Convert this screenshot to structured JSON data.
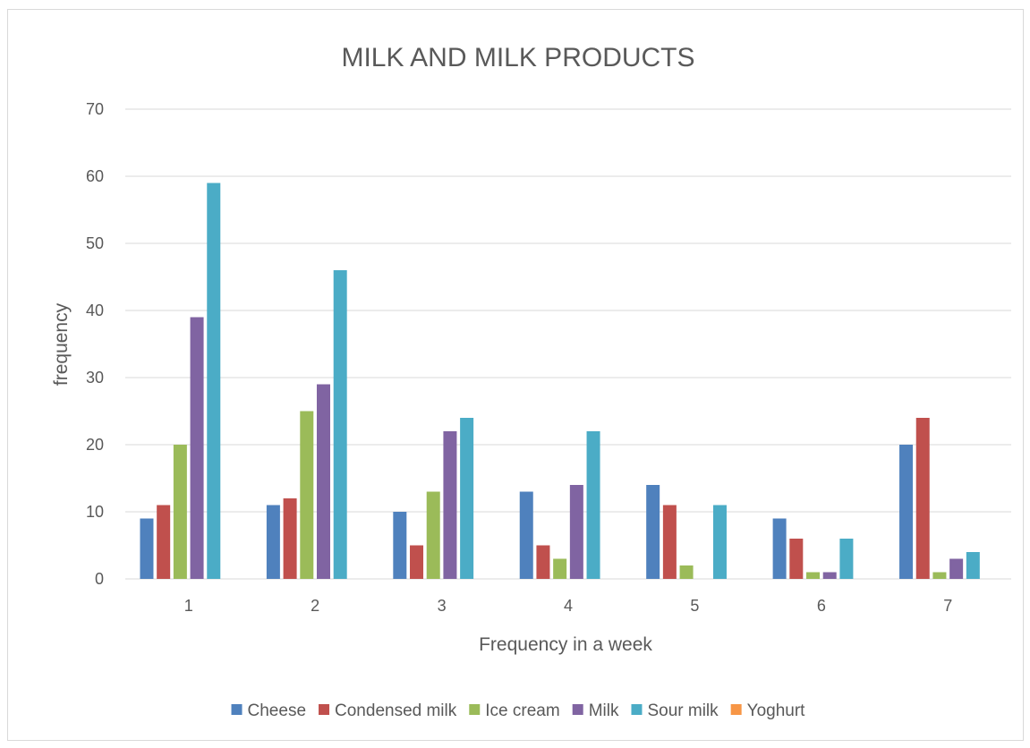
{
  "chart_data": {
    "type": "bar",
    "title": "MILK AND MILK PRODUCTS",
    "xlabel": "Frequency in a week",
    "ylabel": "frequency",
    "categories": [
      "1",
      "2",
      "3",
      "4",
      "5",
      "6",
      "7"
    ],
    "ylim": [
      0,
      70
    ],
    "yticks": [
      0,
      10,
      20,
      30,
      40,
      50,
      60,
      70
    ],
    "grid": true,
    "legend_position": "bottom",
    "series": [
      {
        "name": "Cheese",
        "color": "#4f81bd",
        "values": [
          9,
          11,
          10,
          13,
          14,
          9,
          20
        ]
      },
      {
        "name": "Condensed milk",
        "color": "#c0504d",
        "values": [
          11,
          12,
          5,
          5,
          11,
          6,
          24
        ]
      },
      {
        "name": "Ice cream",
        "color": "#9bbb59",
        "values": [
          20,
          25,
          13,
          3,
          2,
          1,
          1
        ]
      },
      {
        "name": "Milk",
        "color": "#8064a2",
        "values": [
          39,
          29,
          22,
          14,
          0,
          1,
          3
        ]
      },
      {
        "name": "Sour milk",
        "color": "#4bacc6",
        "values": [
          59,
          46,
          24,
          22,
          11,
          6,
          4
        ]
      },
      {
        "name": "Yoghurt",
        "color": "#f79646",
        "values": [
          0,
          0,
          0,
          0,
          0,
          0,
          0
        ]
      }
    ]
  }
}
